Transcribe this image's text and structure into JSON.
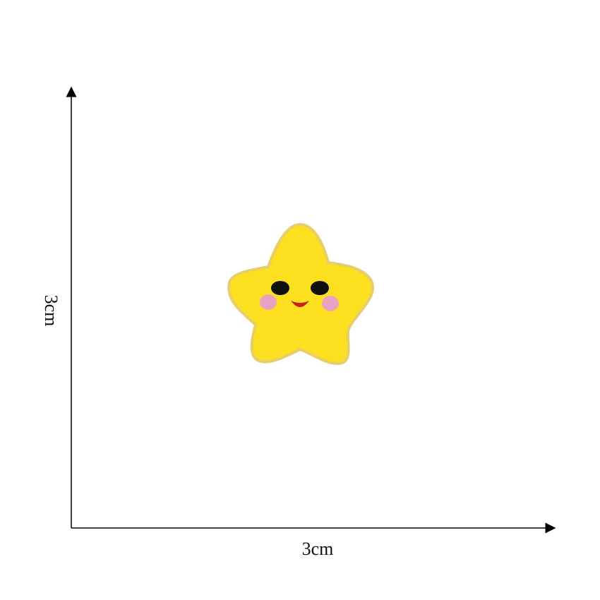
{
  "dimensions": {
    "width_label": "3cm",
    "height_label": "3cm"
  }
}
